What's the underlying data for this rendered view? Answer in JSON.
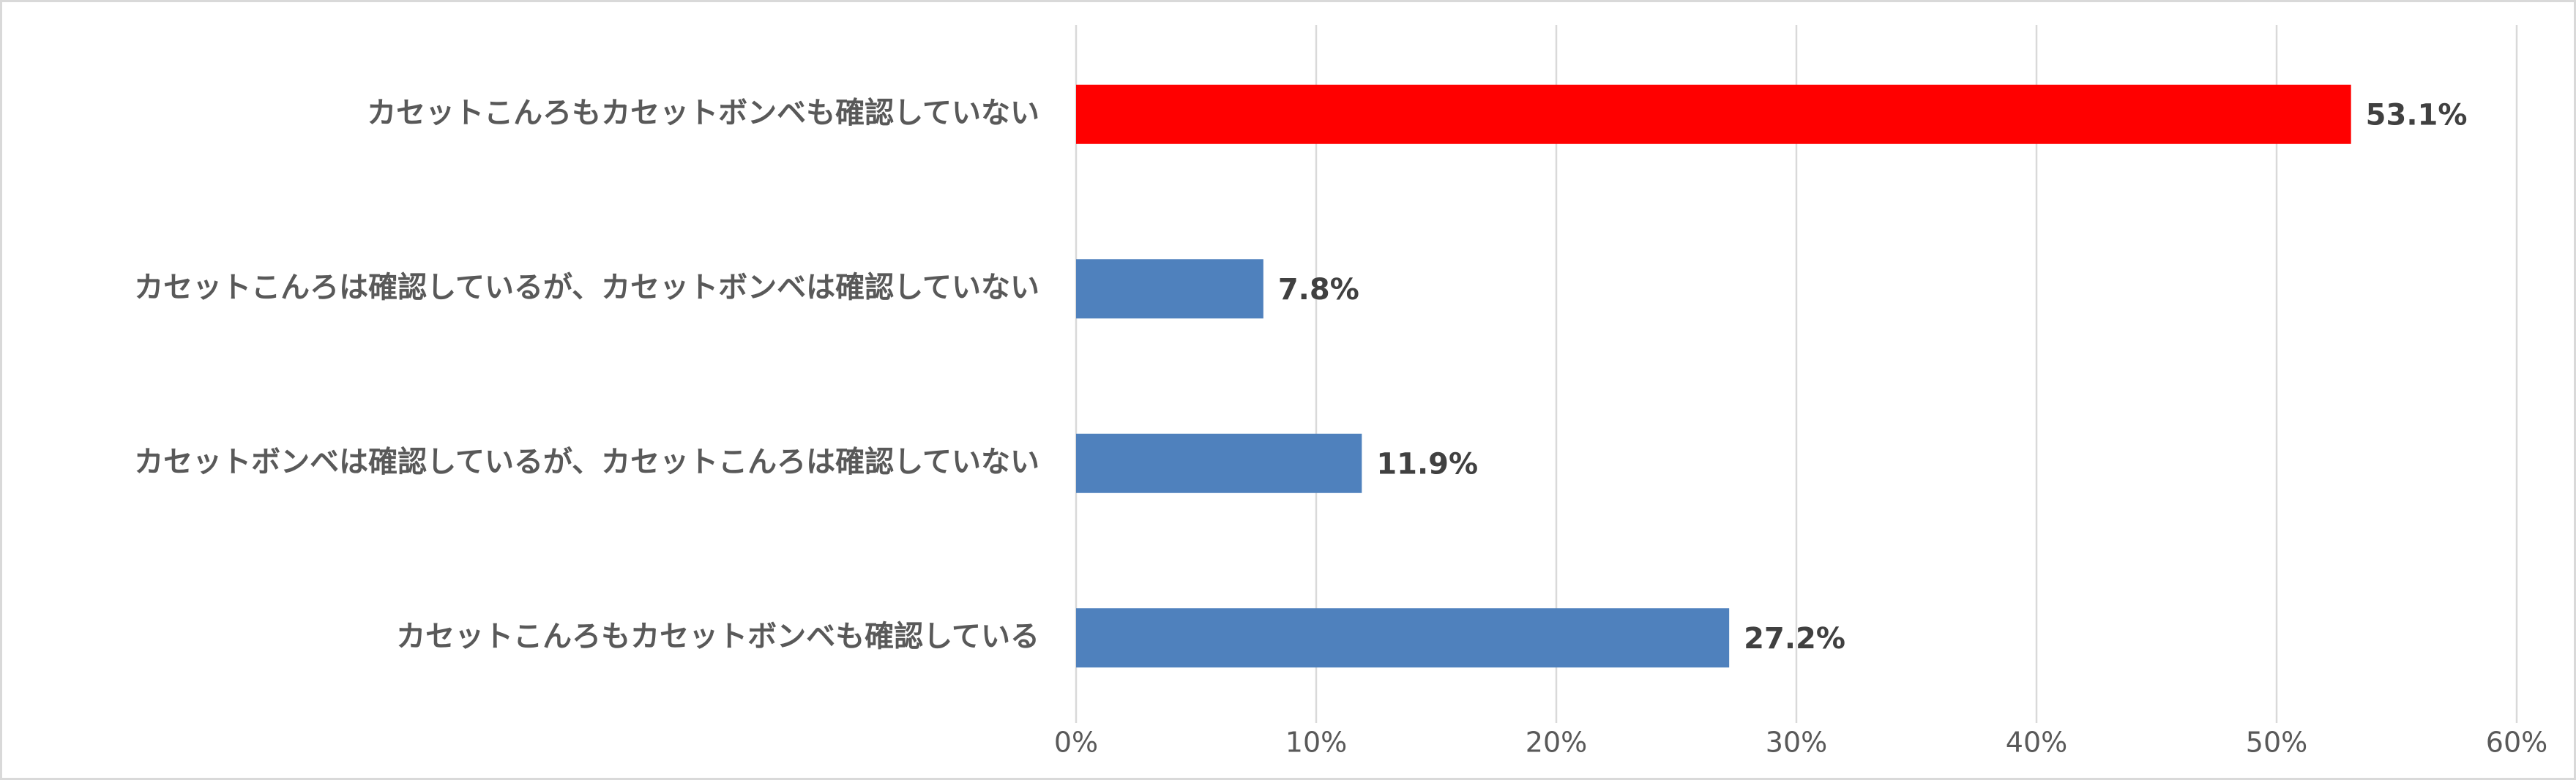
{
  "chart_data": {
    "type": "hbar",
    "categories": [
      "カセットこんろもカセットボンベも確認していない",
      "カセットこんろは確認しているが、カセットボンベは確認していない",
      "カセットボンベは確認しているが、カセットこんろは確認していない",
      "カセットこんろもカセットボンベも確認している"
    ],
    "values": [
      53.1,
      7.8,
      11.9,
      27.2
    ],
    "value_labels": [
      "53.1%",
      "7.8%",
      "11.9%",
      "27.2%"
    ],
    "colors": [
      "#ff0000",
      "#4f81bd",
      "#4f81bd",
      "#4f81bd"
    ],
    "xlim": [
      0,
      60
    ],
    "xticks": [
      {
        "value": 0,
        "label": "0%"
      },
      {
        "value": 10,
        "label": "10%"
      },
      {
        "value": 20,
        "label": "20%"
      },
      {
        "value": 30,
        "label": "30%"
      },
      {
        "value": 40,
        "label": "40%"
      },
      {
        "value": 50,
        "label": "50%"
      },
      {
        "value": 60,
        "label": "60%"
      }
    ],
    "grid": true
  }
}
